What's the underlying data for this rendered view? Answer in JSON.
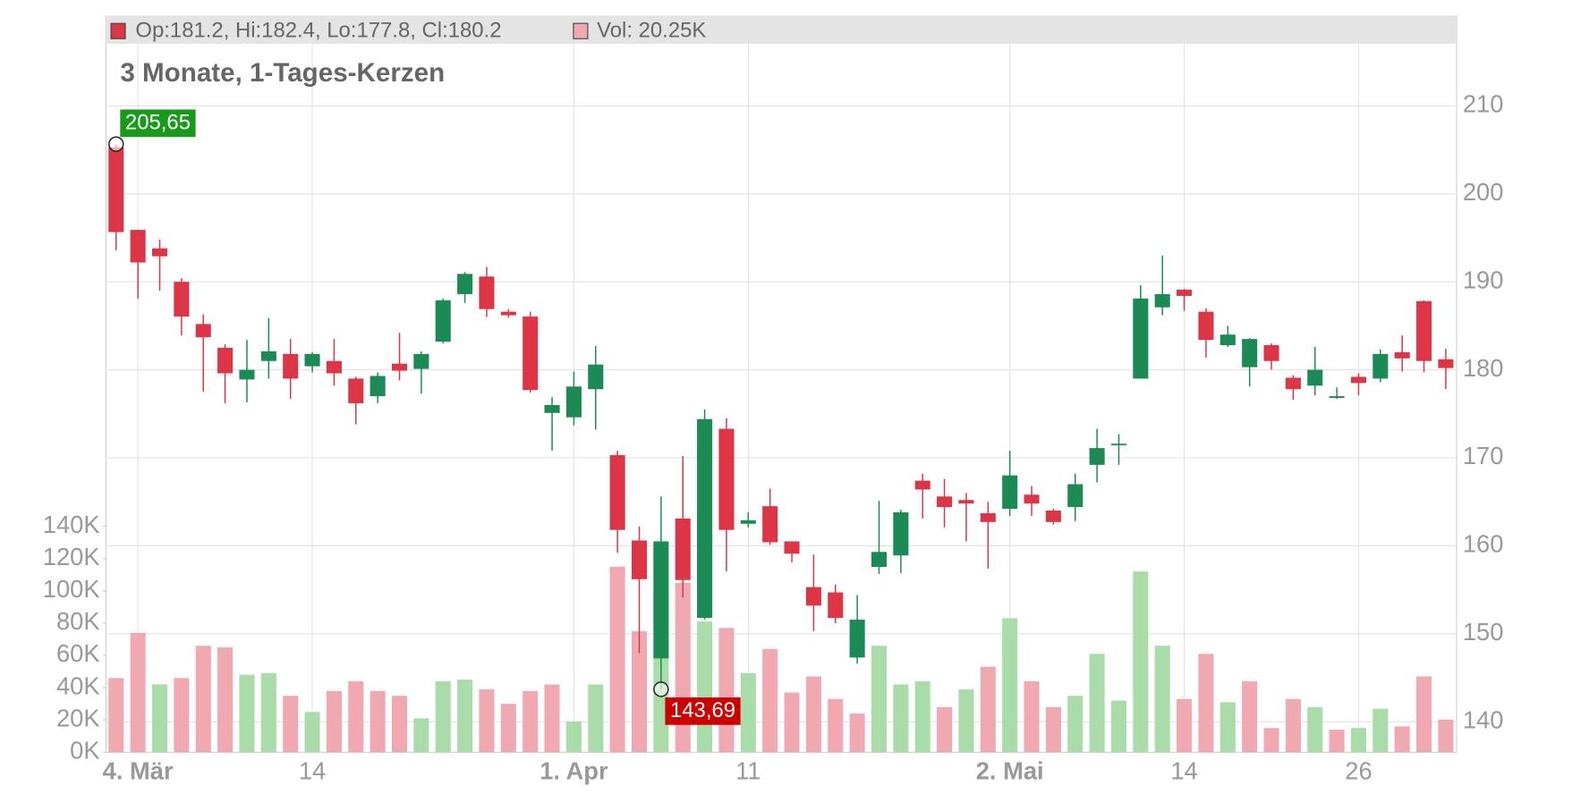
{
  "chart_data": {
    "type": "candlestick",
    "title": "3 Monate, 1-Tages-Kerzen",
    "legend": {
      "ohlc": "Op:181.2, Hi:182.4, Lo:177.8, Cl:180.2",
      "volume": "Vol: 20.25K"
    },
    "max_label": "205,65",
    "min_label": "143,69",
    "categories": [
      null,
      "4. Mär",
      null,
      null,
      null,
      null,
      null,
      null,
      null,
      "14",
      null,
      null,
      null,
      null,
      null,
      null,
      null,
      null,
      null,
      null,
      null,
      "1. Apr",
      null,
      null,
      null,
      null,
      null,
      null,
      null,
      "11",
      null,
      null,
      null,
      null,
      null,
      null,
      null,
      null,
      null,
      null,
      null,
      "2. Mai",
      null,
      null,
      null,
      null,
      null,
      null,
      null,
      "14",
      null,
      null,
      null,
      null,
      null,
      null,
      null,
      "26",
      null,
      null,
      null,
      null
    ],
    "open": [
      205.3,
      195.9,
      193.8,
      190,
      185.2,
      182.5,
      178.9,
      181,
      181.8,
      180.4,
      181,
      179,
      177,
      180.7,
      180.1,
      183.2,
      188.6,
      190.6,
      186.6,
      186.05,
      175.1,
      174.6,
      177.8,
      170.3,
      160.6,
      147.2,
      163.1,
      151.8,
      173.3,
      162.5,
      164.5,
      160.5,
      155.3,
      154.7,
      147.3,
      157.6,
      158.9,
      167.4,
      165.6,
      165.2,
      163.7,
      164.2,
      165.8,
      164,
      164.4,
      169.2,
      171.5,
      179,
      187.1,
      189.1,
      186.6,
      182.8,
      180.3,
      182.8,
      179.1,
      178.2,
      176.8,
      179.2,
      179,
      182,
      187.8,
      181.2
    ],
    "high": [
      205.65,
      195.9,
      194.8,
      190.4,
      186.3,
      182.9,
      183.4,
      185.9,
      183.5,
      182,
      183.5,
      179.2,
      179.7,
      184.2,
      182.1,
      188.1,
      191.1,
      191.7,
      186.9,
      186.6,
      176.9,
      179.8,
      182.7,
      170.8,
      162.2,
      165.6,
      170.2,
      175.5,
      174.5,
      163.8,
      166.5,
      160.5,
      159,
      155.6,
      154.4,
      165.1,
      164.1,
      168.2,
      167.6,
      166,
      165,
      170.8,
      166.8,
      164.2,
      168.2,
      173.3,
      172.7,
      189.6,
      193,
      189.2,
      187,
      185,
      183.6,
      183,
      179.4,
      182.6,
      178,
      179.6,
      182.3,
      183.9,
      187.9,
      182.4
    ],
    "low": [
      193.6,
      188.1,
      189,
      183.9,
      177.5,
      176.2,
      176.3,
      179,
      176.7,
      179.7,
      178.2,
      173.8,
      176.2,
      178.8,
      177.3,
      183,
      187.6,
      186,
      185.9,
      177.4,
      170.8,
      173.7,
      173.2,
      159.2,
      147.8,
      143.69,
      154.1,
      151.6,
      157.1,
      162.1,
      160.1,
      158.1,
      150.3,
      151.2,
      146.6,
      156.8,
      156.9,
      163.1,
      162.1,
      160.5,
      157.4,
      163.4,
      163.4,
      162.4,
      162.8,
      167.2,
      169.2,
      179,
      186.2,
      186.7,
      181.4,
      182.6,
      178.1,
      180,
      176.6,
      177.1,
      176.7,
      177.1,
      178.6,
      179.8,
      179.7,
      177.8
    ],
    "close": [
      195.65,
      192.2,
      192.9,
      186.05,
      183.7,
      179.6,
      180,
      182.1,
      179,
      181.8,
      179.6,
      176.2,
      179.3,
      179.9,
      181.8,
      187.9,
      190.9,
      186.9,
      186.2,
      177.7,
      176,
      178.1,
      180.6,
      161.8,
      156.2,
      160.5,
      156.1,
      174.4,
      161.8,
      162.9,
      160.4,
      159.1,
      153.2,
      151.8,
      151.6,
      159.3,
      163.8,
      166.4,
      164.4,
      164.8,
      162.7,
      168,
      164.8,
      162.7,
      167,
      171.1,
      171.6,
      188.1,
      188.6,
      188.4,
      183.4,
      184,
      183.5,
      181,
      177.8,
      180,
      177,
      178.5,
      181.8,
      181.3,
      181,
      180.2
    ],
    "volume": [
      46000,
      74000,
      42000,
      46000,
      66000,
      65000,
      48000,
      49000,
      35000,
      25000,
      38000,
      44000,
      38000,
      35000,
      21000,
      44000,
      45000,
      39000,
      30000,
      38000,
      42000,
      19000,
      42000,
      115000,
      75000,
      70000,
      105000,
      81000,
      77000,
      49000,
      64000,
      37000,
      47000,
      33000,
      24000,
      66000,
      42000,
      44000,
      28000,
      39000,
      53000,
      83000,
      44000,
      28000,
      35000,
      61000,
      32000,
      112000,
      66000,
      33000,
      61000,
      31000,
      44000,
      15000,
      33000,
      28000,
      14000,
      15000,
      27000,
      16000,
      47000,
      20250
    ],
    "volume_colors": [
      "#f0a9b1",
      "#f0a9b1",
      "#a9dca9",
      "#f0a9b1",
      "#f0a9b1",
      "#f0a9b1",
      "#a9dca9",
      "#a9dca9",
      "#f0a9b1",
      "#a9dca9",
      "#f0a9b1",
      "#f0a9b1",
      "#f0a9b1",
      "#f0a9b1",
      "#a9dca9",
      "#a9dca9",
      "#a9dca9",
      "#f0a9b1",
      "#f0a9b1",
      "#f0a9b1",
      "#f0a9b1",
      "#a9dca9",
      "#a9dca9",
      "#f0a9b1",
      "#f0a9b1",
      "#a9dca9",
      "#f0a9b1",
      "#a9dca9",
      "#f0a9b1",
      "#a9dca9",
      "#f0a9b1",
      "#f0a9b1",
      "#f0a9b1",
      "#f0a9b1",
      "#f0a9b1",
      "#a9dca9",
      "#a9dca9",
      "#a9dca9",
      "#f0a9b1",
      "#a9dca9",
      "#f0a9b1",
      "#a9dca9",
      "#f0a9b1",
      "#f0a9b1",
      "#a9dca9",
      "#a9dca9",
      "#a9dca9",
      "#a9dca9",
      "#a9dca9",
      "#f0a9b1",
      "#f0a9b1",
      "#a9dca9",
      "#f0a9b1",
      "#f0a9b1",
      "#f0a9b1",
      "#a9dca9",
      "#f0a9b1",
      "#a9dca9",
      "#a9dca9",
      "#f0a9b1",
      "#f0a9b1",
      "#f0a9b1"
    ],
    "up_color": "#1b8a55",
    "down_color": "#dc3545",
    "max_label_color": "#1a9a1a",
    "min_label_color": "#cc0000",
    "ylim": [
      136.53,
      220.18
    ],
    "yticks": [
      140,
      150,
      160,
      170,
      180,
      190,
      200,
      210
    ],
    "y2lim": [
      0,
      456000
    ],
    "y2ticks": [
      {
        "value": 0,
        "label": "0K"
      },
      {
        "value": 20000,
        "label": "20K"
      },
      {
        "value": 40000,
        "label": "40K"
      },
      {
        "value": 60000,
        "label": "60K"
      },
      {
        "value": 80000,
        "label": "80K"
      },
      {
        "value": 100000,
        "label": "100K"
      },
      {
        "value": 120000,
        "label": "120K"
      },
      {
        "value": 140000,
        "label": "140K"
      }
    ],
    "grid": true
  }
}
